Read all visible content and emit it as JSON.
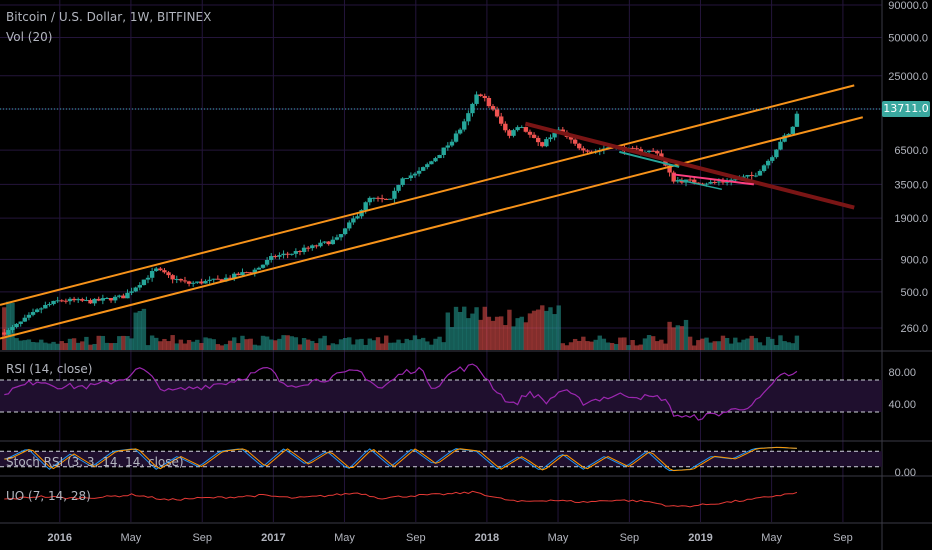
{
  "header": {
    "symbol": "Bitcoin / U.S. Dollar, 1W, BITFINEX",
    "volume_label": "Vol (20)"
  },
  "indicators": {
    "rsi": "RSI (14, close)",
    "stoch_rsi": "Stoch RSI (3, 3, 14, 14, close)",
    "uo": "UO (7, 14, 28)"
  },
  "last_price": "13711.0",
  "colors": {
    "background": "#000000",
    "grid": "#24153b",
    "up": "#26a69a",
    "down": "#ef5350",
    "channel": "#f7931a",
    "rsi": "#9c27b0",
    "rsi_band": "#1f0f2e",
    "price_line": "#3fb0c0",
    "uo": "#e53935"
  },
  "chart_data": {
    "type": "candlestick",
    "title": "Bitcoin / U.S. Dollar, 1W, BITFINEX",
    "price_scale": "log",
    "price_axis_ticks": [
      "90000.0",
      "50000.0",
      "25000.0",
      "13711.0",
      "6500.0",
      "3500.0",
      "1900.0",
      "900.0",
      "500.0",
      "260.0"
    ],
    "price_axis_values": [
      90000,
      50000,
      25000,
      13711,
      6500,
      3500,
      1900,
      900,
      500,
      260
    ],
    "rsi_ticks": [
      "80.00",
      "40.00"
    ],
    "rsi_tick_values": [
      80,
      40
    ],
    "rsi_bands": [
      70,
      30
    ],
    "stoch_ticks": [
      "0.00"
    ],
    "time_labels": [
      "2016",
      "May",
      "Sep",
      "2017",
      "May",
      "Sep",
      "2018",
      "May",
      "Sep",
      "2019",
      "May",
      "Sep"
    ],
    "time_label_values": [
      2016.0,
      2016.333,
      2016.667,
      2017.0,
      2017.333,
      2017.667,
      2018.0,
      2018.333,
      2018.667,
      2019.0,
      2019.333,
      2019.667
    ],
    "price_anchors": [
      [
        2015.75,
        240
      ],
      [
        2015.92,
        380
      ],
      [
        2016.0,
        430
      ],
      [
        2016.15,
        420
      ],
      [
        2016.3,
        460
      ],
      [
        2016.45,
        750
      ],
      [
        2016.52,
        650
      ],
      [
        2016.6,
        580
      ],
      [
        2016.75,
        620
      ],
      [
        2016.92,
        750
      ],
      [
        2017.0,
        950
      ],
      [
        2017.08,
        1000
      ],
      [
        2017.2,
        1150
      ],
      [
        2017.3,
        1300
      ],
      [
        2017.4,
        2100
      ],
      [
        2017.45,
        2700
      ],
      [
        2017.55,
        2600
      ],
      [
        2017.6,
        4000
      ],
      [
        2017.67,
        4200
      ],
      [
        2017.75,
        5500
      ],
      [
        2017.83,
        7500
      ],
      [
        2017.9,
        11000
      ],
      [
        2017.96,
        19000
      ],
      [
        2018.02,
        14000
      ],
      [
        2018.1,
        8500
      ],
      [
        2018.15,
        10500
      ],
      [
        2018.25,
        7000
      ],
      [
        2018.33,
        9500
      ],
      [
        2018.42,
        7000
      ],
      [
        2018.5,
        6300
      ],
      [
        2018.58,
        7000
      ],
      [
        2018.67,
        6500
      ],
      [
        2018.8,
        6300
      ],
      [
        2018.87,
        3800
      ],
      [
        2018.95,
        3700
      ],
      [
        2019.05,
        3600
      ],
      [
        2019.15,
        3800
      ],
      [
        2019.25,
        4100
      ],
      [
        2019.33,
        5700
      ],
      [
        2019.38,
        8000
      ],
      [
        2019.42,
        8700
      ],
      [
        2019.46,
        13711
      ]
    ],
    "channel_lines": [
      [
        [
          2015.72,
          395
        ],
        [
          2019.72,
          21000
        ]
      ],
      [
        [
          2015.72,
          215
        ],
        [
          2019.76,
          11800
        ]
      ]
    ],
    "trend_lines": [
      [
        [
          2018.18,
          10500
        ],
        [
          2019.72,
          2300
        ]
      ],
      [
        [
          2018.62,
          6300
        ],
        [
          2018.9,
          4800
        ]
      ],
      [
        [
          2018.87,
          4200
        ],
        [
          2019.25,
          3500
        ]
      ],
      [
        [
          2018.9,
          3800
        ],
        [
          2019.1,
          3200
        ]
      ]
    ],
    "rsi_anchors": [
      [
        2015.75,
        55
      ],
      [
        2015.9,
        70
      ],
      [
        2016.0,
        62
      ],
      [
        2016.15,
        62
      ],
      [
        2016.3,
        72
      ],
      [
        2016.38,
        85
      ],
      [
        2016.5,
        55
      ],
      [
        2016.62,
        60
      ],
      [
        2016.8,
        68
      ],
      [
        2016.98,
        85
      ],
      [
        2017.05,
        62
      ],
      [
        2017.25,
        72
      ],
      [
        2017.4,
        82
      ],
      [
        2017.5,
        58
      ],
      [
        2017.6,
        78
      ],
      [
        2017.68,
        85
      ],
      [
        2017.75,
        60
      ],
      [
        2017.85,
        82
      ],
      [
        2017.95,
        88
      ],
      [
        2018.05,
        55
      ],
      [
        2018.12,
        38
      ],
      [
        2018.2,
        55
      ],
      [
        2018.28,
        42
      ],
      [
        2018.35,
        58
      ],
      [
        2018.45,
        42
      ],
      [
        2018.55,
        48
      ],
      [
        2018.65,
        52
      ],
      [
        2018.75,
        48
      ],
      [
        2018.83,
        48
      ],
      [
        2018.87,
        28
      ],
      [
        2018.95,
        22
      ],
      [
        2019.05,
        26
      ],
      [
        2019.15,
        32
      ],
      [
        2019.25,
        40
      ],
      [
        2019.33,
        60
      ],
      [
        2019.38,
        80
      ],
      [
        2019.42,
        72
      ],
      [
        2019.46,
        83
      ]
    ],
    "stoch_anchors": [
      [
        2015.75,
        0.5
      ],
      [
        2015.85,
        0.9
      ],
      [
        2015.95,
        0.1
      ],
      [
        2016.05,
        0.7
      ],
      [
        2016.15,
        0.2
      ],
      [
        2016.25,
        0.8
      ],
      [
        2016.35,
        0.9
      ],
      [
        2016.45,
        0.1
      ],
      [
        2016.55,
        0.6
      ],
      [
        2016.65,
        0.2
      ],
      [
        2016.75,
        0.8
      ],
      [
        2016.85,
        0.9
      ],
      [
        2016.95,
        0.2
      ],
      [
        2017.05,
        0.9
      ],
      [
        2017.15,
        0.3
      ],
      [
        2017.25,
        0.8
      ],
      [
        2017.35,
        0.1
      ],
      [
        2017.45,
        0.9
      ],
      [
        2017.55,
        0.2
      ],
      [
        2017.65,
        0.9
      ],
      [
        2017.75,
        0.3
      ],
      [
        2017.85,
        0.9
      ],
      [
        2017.95,
        0.8
      ],
      [
        2018.05,
        0.1
      ],
      [
        2018.15,
        0.6
      ],
      [
        2018.25,
        0.05
      ],
      [
        2018.35,
        0.7
      ],
      [
        2018.45,
        0.1
      ],
      [
        2018.55,
        0.6
      ],
      [
        2018.65,
        0.2
      ],
      [
        2018.75,
        0.8
      ],
      [
        2018.85,
        0.05
      ],
      [
        2018.95,
        0.1
      ],
      [
        2019.05,
        0.6
      ],
      [
        2019.15,
        0.5
      ],
      [
        2019.25,
        0.9
      ],
      [
        2019.35,
        0.95
      ],
      [
        2019.46,
        0.9
      ]
    ],
    "uo_anchors": [
      [
        2015.75,
        52
      ],
      [
        2015.9,
        60
      ],
      [
        2016.05,
        55
      ],
      [
        2016.2,
        58
      ],
      [
        2016.35,
        65
      ],
      [
        2016.5,
        50
      ],
      [
        2016.65,
        55
      ],
      [
        2016.8,
        58
      ],
      [
        2016.95,
        63
      ],
      [
        2017.1,
        55
      ],
      [
        2017.25,
        62
      ],
      [
        2017.4,
        70
      ],
      [
        2017.5,
        55
      ],
      [
        2017.65,
        62
      ],
      [
        2017.8,
        66
      ],
      [
        2017.95,
        72
      ],
      [
        2018.05,
        55
      ],
      [
        2018.15,
        45
      ],
      [
        2018.3,
        50
      ],
      [
        2018.45,
        44
      ],
      [
        2018.6,
        50
      ],
      [
        2018.75,
        46
      ],
      [
        2018.87,
        32
      ],
      [
        2018.97,
        34
      ],
      [
        2019.1,
        42
      ],
      [
        2019.25,
        52
      ],
      [
        2019.35,
        62
      ],
      [
        2019.46,
        70
      ]
    ],
    "grid": true,
    "legend": "none"
  }
}
